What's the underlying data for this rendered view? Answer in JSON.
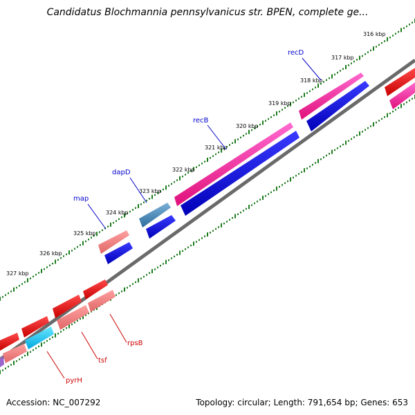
{
  "header": {
    "title": "Candidatus Blochmannia pennsylvanicus str. BPEN, complete ge..."
  },
  "footer": {
    "accession": "Accession: NC_007292",
    "summary": "Topology: circular; Length: 791,654 bp; Genes: 653"
  },
  "colors": {
    "backbone": "#808080",
    "tick": "#1a7a1a",
    "gene_label_forward": "#0000cc",
    "gene_label_reverse": "#cc0000"
  },
  "diagram": {
    "scale_labels": [
      "316 kbp",
      "317 kbp",
      "318 kbp",
      "319 kbp",
      "320 kbp",
      "321 kbp",
      "322 kbp",
      "323 kbp",
      "324 kbp",
      "325 kbp",
      "326 kbp",
      "327 kbp"
    ],
    "gene_labels": [
      {
        "name": "recD",
        "strand": "forward"
      },
      {
        "name": "recB",
        "strand": "forward"
      },
      {
        "name": "dapD",
        "strand": "forward"
      },
      {
        "name": "map",
        "strand": "forward"
      },
      {
        "name": "rpsB",
        "strand": "reverse"
      },
      {
        "name": "tsf",
        "strand": "reverse"
      },
      {
        "name": "pyrH",
        "strand": "reverse"
      }
    ]
  }
}
